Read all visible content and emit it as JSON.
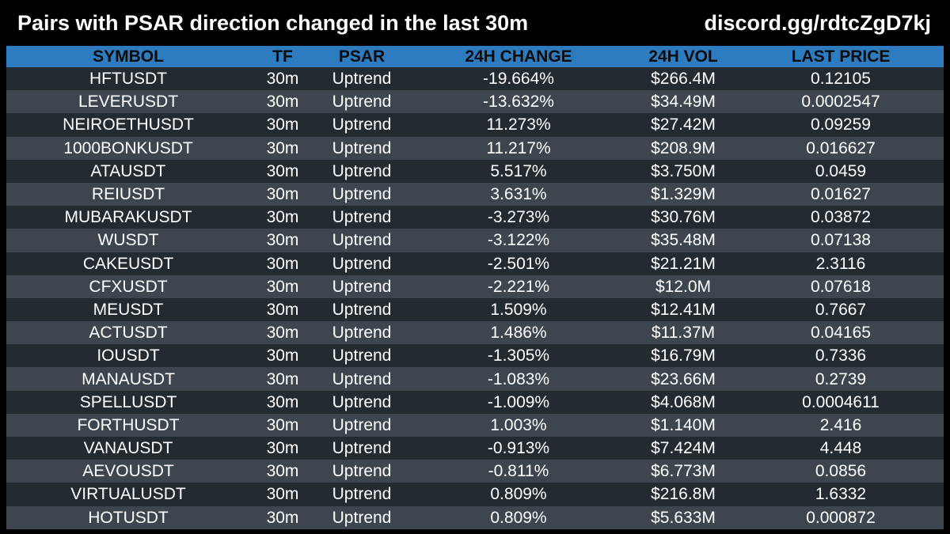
{
  "header": {
    "title": "Pairs with PSAR direction changed in the last 30m",
    "invite": "discord.gg/rdtcZgD7kj"
  },
  "colors": {
    "background": "#000000",
    "header_row": "#2d7cbf",
    "row_dark": "#232a30",
    "row_light": "#3d464f"
  },
  "table": {
    "columns": [
      "SYMBOL",
      "TF",
      "PSAR",
      "24H CHANGE",
      "24H VOL",
      "LAST PRICE"
    ],
    "rows": [
      [
        "HFTUSDT",
        "30m",
        "Uptrend",
        "-19.664%",
        "$266.4M",
        "0.12105"
      ],
      [
        "LEVERUSDT",
        "30m",
        "Uptrend",
        "-13.632%",
        "$34.49M",
        "0.0002547"
      ],
      [
        "NEIROETHUSDT",
        "30m",
        "Uptrend",
        "11.273%",
        "$27.42M",
        "0.09259"
      ],
      [
        "1000BONKUSDT",
        "30m",
        "Uptrend",
        "11.217%",
        "$208.9M",
        "0.016627"
      ],
      [
        "ATAUSDT",
        "30m",
        "Uptrend",
        "5.517%",
        "$3.750M",
        "0.0459"
      ],
      [
        "REIUSDT",
        "30m",
        "Uptrend",
        "3.631%",
        "$1.329M",
        "0.01627"
      ],
      [
        "MUBARAKUSDT",
        "30m",
        "Uptrend",
        "-3.273%",
        "$30.76M",
        "0.03872"
      ],
      [
        "WUSDT",
        "30m",
        "Uptrend",
        "-3.122%",
        "$35.48M",
        "0.07138"
      ],
      [
        "CAKEUSDT",
        "30m",
        "Uptrend",
        "-2.501%",
        "$21.21M",
        "2.3116"
      ],
      [
        "CFXUSDT",
        "30m",
        "Uptrend",
        "-2.221%",
        "$12.0M",
        "0.07618"
      ],
      [
        "MEUSDT",
        "30m",
        "Uptrend",
        "1.509%",
        "$12.41M",
        "0.7667"
      ],
      [
        "ACTUSDT",
        "30m",
        "Uptrend",
        "1.486%",
        "$11.37M",
        "0.04165"
      ],
      [
        "IOUSDT",
        "30m",
        "Uptrend",
        "-1.305%",
        "$16.79M",
        "0.7336"
      ],
      [
        "MANAUSDT",
        "30m",
        "Uptrend",
        "-1.083%",
        "$23.66M",
        "0.2739"
      ],
      [
        "SPELLUSDT",
        "30m",
        "Uptrend",
        "-1.009%",
        "$4.068M",
        "0.0004611"
      ],
      [
        "FORTHUSDT",
        "30m",
        "Uptrend",
        "1.003%",
        "$1.140M",
        "2.416"
      ],
      [
        "VANAUSDT",
        "30m",
        "Uptrend",
        "-0.913%",
        "$7.424M",
        "4.448"
      ],
      [
        "AEVOUSDT",
        "30m",
        "Uptrend",
        "-0.811%",
        "$6.773M",
        "0.0856"
      ],
      [
        "VIRTUALUSDT",
        "30m",
        "Uptrend",
        "0.809%",
        "$216.8M",
        "1.6332"
      ],
      [
        "HOTUSDT",
        "30m",
        "Uptrend",
        "0.809%",
        "$5.633M",
        "0.000872"
      ]
    ]
  }
}
